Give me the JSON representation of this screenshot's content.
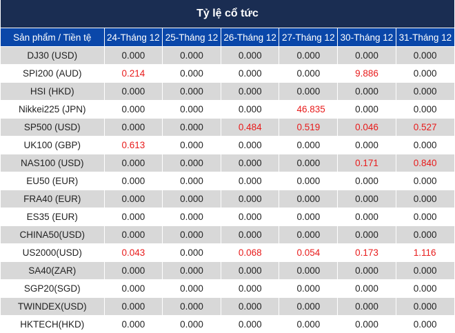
{
  "title": "Tỷ lệ cổ tức",
  "header": [
    "Sản phẩm / Tiền tệ",
    "24-Tháng 12",
    "25-Tháng 12",
    "26-Tháng 12",
    "27-Tháng 12",
    "30-Tháng 12",
    "31-Tháng 12"
  ],
  "colors": {
    "title_bg": "#1a2d52",
    "header_bg": "#0a47a9",
    "row_alt": "#d8d8d8",
    "positive": "#e81a1a"
  },
  "rows": [
    {
      "name": "DJ30 (USD)",
      "values": [
        "0.000",
        "0.000",
        "0.000",
        "0.000",
        "0.000",
        "0.000"
      ]
    },
    {
      "name": "SPI200 (AUD)",
      "values": [
        "0.214",
        "0.000",
        "0.000",
        "0.000",
        "9.886",
        "0.000"
      ]
    },
    {
      "name": "HSI (HKD)",
      "values": [
        "0.000",
        "0.000",
        "0.000",
        "0.000",
        "0.000",
        "0.000"
      ]
    },
    {
      "name": "Nikkei225 (JPN)",
      "values": [
        "0.000",
        "0.000",
        "0.000",
        "46.835",
        "0.000",
        "0.000"
      ]
    },
    {
      "name": "SP500 (USD)",
      "values": [
        "0.000",
        "0.000",
        "0.484",
        "0.519",
        "0.046",
        "0.527"
      ]
    },
    {
      "name": "UK100 (GBP)",
      "values": [
        "0.613",
        "0.000",
        "0.000",
        "0.000",
        "0.000",
        "0.000"
      ]
    },
    {
      "name": "NAS100 (USD)",
      "values": [
        "0.000",
        "0.000",
        "0.000",
        "0.000",
        "0.171",
        "0.840"
      ]
    },
    {
      "name": "EU50 (EUR)",
      "values": [
        "0.000",
        "0.000",
        "0.000",
        "0.000",
        "0.000",
        "0.000"
      ]
    },
    {
      "name": "FRA40 (EUR)",
      "values": [
        "0.000",
        "0.000",
        "0.000",
        "0.000",
        "0.000",
        "0.000"
      ]
    },
    {
      "name": "ES35 (EUR)",
      "values": [
        "0.000",
        "0.000",
        "0.000",
        "0.000",
        "0.000",
        "0.000"
      ]
    },
    {
      "name": "CHINA50(USD)",
      "values": [
        "0.000",
        "0.000",
        "0.000",
        "0.000",
        "0.000",
        "0.000"
      ]
    },
    {
      "name": "US2000(USD)",
      "values": [
        "0.043",
        "0.000",
        "0.068",
        "0.054",
        "0.173",
        "1.116"
      ]
    },
    {
      "name": "SA40(ZAR)",
      "values": [
        "0.000",
        "0.000",
        "0.000",
        "0.000",
        "0.000",
        "0.000"
      ]
    },
    {
      "name": "SGP20(SGD)",
      "values": [
        "0.000",
        "0.000",
        "0.000",
        "0.000",
        "0.000",
        "0.000"
      ]
    },
    {
      "name": "TWINDEX(USD)",
      "values": [
        "0.000",
        "0.000",
        "0.000",
        "0.000",
        "0.000",
        "0.000"
      ]
    },
    {
      "name": "HKTECH(HKD)",
      "values": [
        "0.000",
        "0.000",
        "0.000",
        "0.000",
        "0.000",
        "0.000"
      ]
    }
  ]
}
